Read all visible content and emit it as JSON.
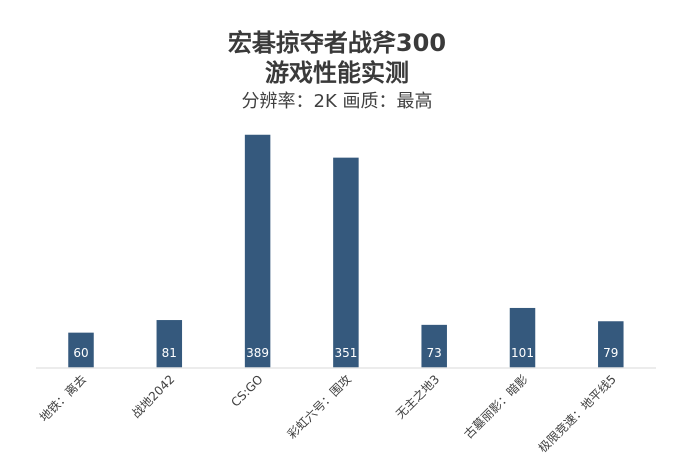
{
  "chart_data": {
    "type": "bar",
    "title": [
      "宏碁掠夺者战斧300",
      "游戏性能实测"
    ],
    "subtitle": "分辨率：2K 画质：最高",
    "categories": [
      "地铁：离去",
      "战地2042",
      "CS:GO",
      "彩虹六号：围攻",
      "无主之地3",
      "古墓丽影：暗影",
      "极限竞速：地平线5"
    ],
    "values": [
      60,
      81,
      389,
      351,
      73,
      101,
      79
    ],
    "bar_color": "#35597d",
    "label_color": "#ffffff",
    "grid": false,
    "legend": "none"
  }
}
